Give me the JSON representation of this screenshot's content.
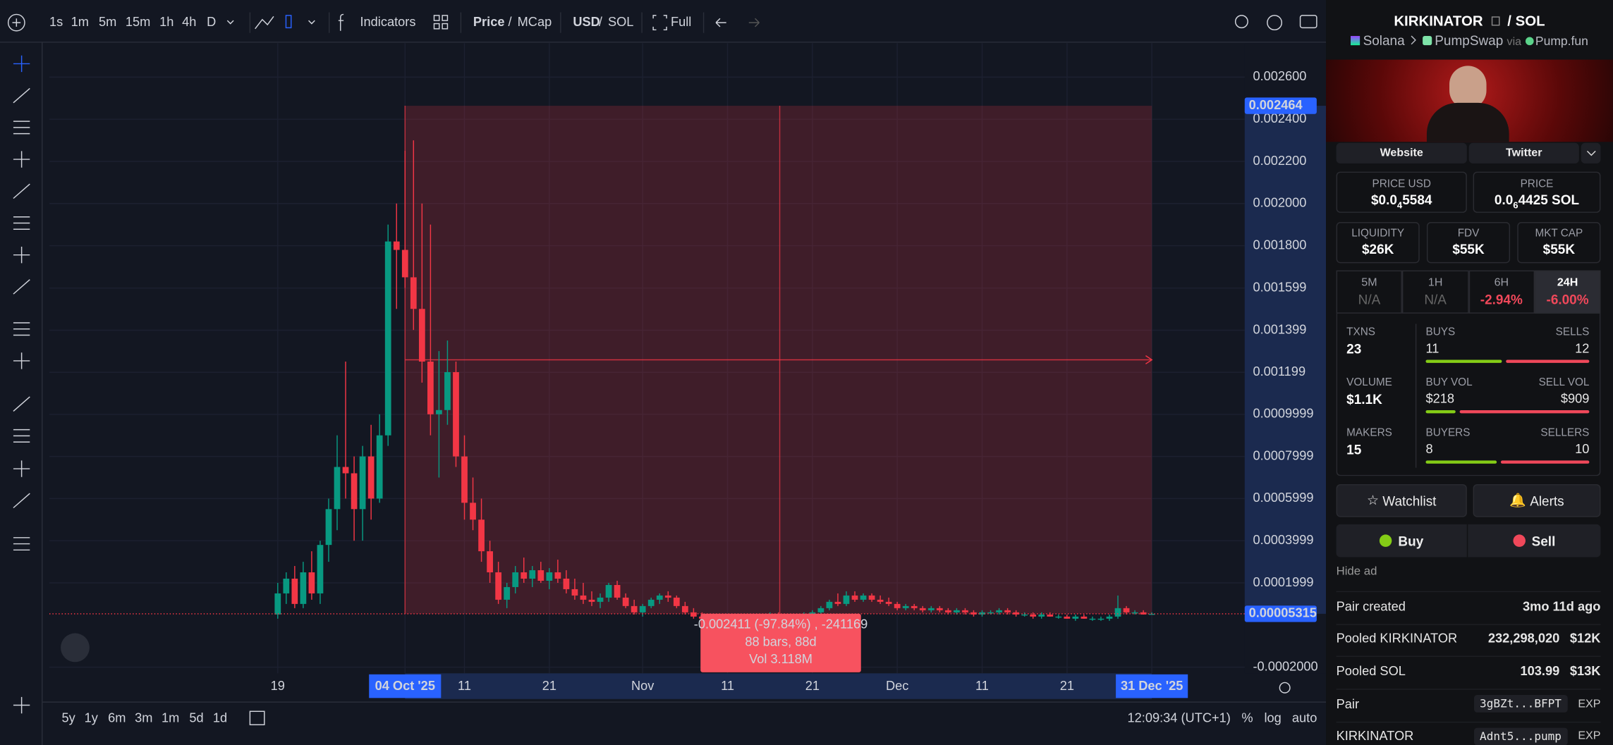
{
  "toolbar": {
    "intervals": [
      "1s",
      "1m",
      "5m",
      "15m",
      "1h",
      "4h",
      "D"
    ],
    "indicators": "Indicators",
    "price": "Price",
    "price_sep": "/",
    "mcap": "MCap",
    "usd": "USD",
    "cur_sep": "/",
    "sol": "SOL",
    "full": "Full"
  },
  "chart": {
    "price_axis": {
      "range": [
        -0.0002,
        0.0026
      ],
      "ticks": [
        {
          "value": 0.0026,
          "label": "0.002600"
        },
        {
          "value": 0.0024,
          "label": "0.002400"
        },
        {
          "value": 0.0022,
          "label": "0.002200"
        },
        {
          "value": 0.002,
          "label": "0.002000"
        },
        {
          "value": 0.0018,
          "label": "0.001800"
        },
        {
          "value": 0.001599,
          "label": "0.001599"
        },
        {
          "value": 0.001399,
          "label": "0.001399"
        },
        {
          "value": 0.001199,
          "label": "0.001199"
        },
        {
          "value": 0.0009999,
          "label": "0.0009999"
        },
        {
          "value": 0.0007999,
          "label": "0.0007999"
        },
        {
          "value": 0.0005999,
          "label": "0.0005999"
        },
        {
          "value": 0.0003999,
          "label": "0.0003999"
        },
        {
          "value": 0.0001999,
          "label": "0.0001999"
        },
        {
          "value": -0.0002,
          "label": "-0.0002000"
        }
      ]
    },
    "time_axis": [
      "19",
      "04 Oct '25",
      "11",
      "21",
      "Nov",
      "11",
      "21",
      "Dec",
      "11",
      "21",
      "31 Dec '25"
    ],
    "range_top": {
      "value": 0.002464,
      "label": "0.002464"
    },
    "last_price": {
      "value": 5.315e-05,
      "label": "0.00005315"
    },
    "measure": [
      "-0.002411 (-97.84%) , -241169",
      "88 bars, 88d",
      "Vol 3.118M"
    ],
    "candles": [
      [
        5e-05,
        0.0002,
        3e-05,
        0.00015
      ],
      [
        0.00015,
        0.00025,
        0.0001,
        0.00022
      ],
      [
        0.00022,
        0.00028,
        8e-05,
        0.0001
      ],
      [
        0.0001,
        0.0003,
        8e-05,
        0.00025
      ],
      [
        0.00025,
        0.00035,
        0.00012,
        0.00015
      ],
      [
        0.00015,
        0.0004,
        0.0001,
        0.00038
      ],
      [
        0.00038,
        0.0006,
        0.0003,
        0.00055
      ],
      [
        0.00055,
        0.0009,
        0.00045,
        0.00075
      ],
      [
        0.00075,
        0.00125,
        0.0006,
        0.00072
      ],
      [
        0.00072,
        0.0008,
        0.0004,
        0.00055
      ],
      [
        0.00055,
        0.00085,
        0.0004,
        0.0008
      ],
      [
        0.0008,
        0.00095,
        0.0005,
        0.0006
      ],
      [
        0.0006,
        0.001,
        0.00058,
        0.0009
      ],
      [
        0.0009,
        0.0019,
        0.00085,
        0.00182
      ],
      [
        0.00182,
        0.002,
        0.0015,
        0.00178
      ],
      [
        0.00178,
        0.00225,
        0.0016,
        0.00165
      ],
      [
        0.00165,
        0.0023,
        0.0014,
        0.0015
      ],
      [
        0.0015,
        0.002,
        0.00115,
        0.00125
      ],
      [
        0.00125,
        0.0019,
        0.0009,
        0.001
      ],
      [
        0.001,
        0.0013,
        0.0007,
        0.00102
      ],
      [
        0.00102,
        0.00135,
        0.00095,
        0.0012
      ],
      [
        0.0012,
        0.00125,
        0.00075,
        0.0008
      ],
      [
        0.0008,
        0.0009,
        0.0005,
        0.00058
      ],
      [
        0.00058,
        0.0007,
        0.00045,
        0.0005
      ],
      [
        0.0005,
        0.0006,
        0.0003,
        0.00035
      ],
      [
        0.00035,
        0.0004,
        0.0002,
        0.00025
      ],
      [
        0.00025,
        0.0003,
        0.0001,
        0.00012
      ],
      [
        0.00012,
        0.0002,
        8e-05,
        0.00018
      ],
      [
        0.00018,
        0.00028,
        0.00015,
        0.00025
      ],
      [
        0.00025,
        0.00032,
        0.0002,
        0.00022
      ],
      [
        0.00022,
        0.00028,
        0.00018,
        0.00026
      ],
      [
        0.00026,
        0.0003,
        0.0002,
        0.00021
      ],
      [
        0.00021,
        0.00027,
        0.00017,
        0.00025
      ],
      [
        0.00025,
        0.00031,
        0.0002,
        0.00022
      ],
      [
        0.00022,
        0.00026,
        0.00015,
        0.00017
      ],
      [
        0.00017,
        0.00022,
        0.00012,
        0.00014
      ],
      [
        0.00014,
        0.0002,
        0.0001,
        0.00012
      ],
      [
        0.00012,
        0.00016,
        9e-05,
        0.00011
      ],
      [
        0.00011,
        0.00015,
        8e-05,
        0.00013
      ],
      [
        0.00013,
        0.0002,
        0.00011,
        0.00019
      ],
      [
        0.00019,
        0.00021,
        0.00012,
        0.00013
      ],
      [
        0.00013,
        0.00015,
        8e-05,
        9e-05
      ],
      [
        9e-05,
        0.00012,
        5e-05,
        6e-05
      ],
      [
        6e-05,
        0.0001,
        4e-05,
        9e-05
      ],
      [
        9e-05,
        0.00013,
        8e-05,
        0.00012
      ],
      [
        0.00012,
        0.00015,
        0.0001,
        0.00014
      ],
      [
        0.00014,
        0.00016,
        0.00011,
        0.00013
      ],
      [
        0.00013,
        0.00014,
        8e-05,
        9e-05
      ],
      [
        9e-05,
        0.00011,
        5e-05,
        6e-05
      ],
      [
        6e-05,
        8e-05,
        3e-05,
        4e-05
      ],
      [
        4e-05,
        6e-05,
        2e-05,
        3e-05
      ],
      [
        3e-05,
        5e-05,
        1e-05,
        2e-05
      ],
      [
        2e-05,
        4e-05,
        1e-05,
        3e-05
      ],
      [
        3e-05,
        5e-05,
        2e-05,
        4e-05
      ],
      [
        4e-05,
        5e-05,
        2e-05,
        3e-05
      ],
      [
        3e-05,
        4e-05,
        1e-05,
        2e-05
      ],
      [
        2e-05,
        4e-05,
        1e-05,
        3e-05
      ],
      [
        3e-05,
        5e-05,
        2e-05,
        4e-05
      ],
      [
        4e-05,
        6e-05,
        3e-05,
        5e-05
      ],
      [
        5e-05,
        6e-05,
        3e-05,
        4e-05
      ],
      [
        4e-05,
        5e-05,
        2e-05,
        3e-05
      ],
      [
        3e-05,
        5e-05,
        2e-05,
        4e-05
      ],
      [
        4e-05,
        6e-05,
        3e-05,
        5e-05
      ],
      [
        5e-05,
        7e-05,
        4e-05,
        6e-05
      ],
      [
        6e-05,
        9e-05,
        5e-05,
        8e-05
      ],
      [
        8e-05,
        0.00012,
        7e-05,
        0.00011
      ],
      [
        0.00011,
        0.00015,
        9e-05,
        0.0001
      ],
      [
        0.0001,
        0.00016,
        9e-05,
        0.00014
      ],
      [
        0.00014,
        0.00016,
        0.00011,
        0.00012
      ],
      [
        0.00012,
        0.00015,
        0.00011,
        0.00014
      ],
      [
        0.00014,
        0.00015,
        0.00011,
        0.00012
      ],
      [
        0.00012,
        0.00014,
        0.0001,
        0.00011
      ],
      [
        0.00011,
        0.00013,
        9e-05,
        0.0001
      ],
      [
        0.0001,
        0.00011,
        7e-05,
        8e-05
      ],
      [
        8e-05,
        0.0001,
        7e-05,
        9e-05
      ],
      [
        9e-05,
        0.0001,
        7e-05,
        8e-05
      ],
      [
        8e-05,
        9e-05,
        6e-05,
        7e-05
      ],
      [
        7e-05,
        9e-05,
        6e-05,
        8e-05
      ],
      [
        8e-05,
        9e-05,
        6e-05,
        7e-05
      ],
      [
        7e-05,
        8e-05,
        5e-05,
        6e-05
      ],
      [
        6e-05,
        8e-05,
        5e-05,
        7e-05
      ],
      [
        7e-05,
        8e-05,
        5e-05,
        6e-05
      ],
      [
        6e-05,
        7e-05,
        4e-05,
        5e-05
      ],
      [
        5e-05,
        7e-05,
        4e-05,
        6e-05
      ],
      [
        6e-05,
        7e-05,
        5e-05,
        6e-05
      ],
      [
        6e-05,
        8e-05,
        5e-05,
        7e-05
      ],
      [
        7e-05,
        8e-05,
        5e-05,
        6e-05
      ],
      [
        6e-05,
        7e-05,
        4e-05,
        5e-05
      ],
      [
        5e-05,
        6e-05,
        4e-05,
        5e-05
      ],
      [
        5e-05,
        6e-05,
        3e-05,
        4e-05
      ],
      [
        4e-05,
        6e-05,
        3e-05,
        5e-05
      ],
      [
        5e-05,
        6e-05,
        4e-05,
        4e-05
      ],
      [
        4e-05,
        5e-05,
        3e-05,
        4e-05
      ],
      [
        4e-05,
        5e-05,
        3e-05,
        3e-05
      ],
      [
        3e-05,
        5e-05,
        2e-05,
        4e-05
      ],
      [
        4e-05,
        5e-05,
        3e-05,
        3e-05
      ],
      [
        3e-05,
        4e-05,
        2e-05,
        3e-05
      ],
      [
        3e-05,
        4e-05,
        2e-05,
        3e-05
      ],
      [
        3e-05,
        5e-05,
        2e-05,
        4e-05
      ],
      [
        4e-05,
        0.00014,
        3e-05,
        8e-05
      ],
      [
        8e-05,
        9e-05,
        5e-05,
        6e-05
      ],
      [
        6e-05,
        7e-05,
        5e-05,
        6e-05
      ],
      [
        6e-05,
        7e-05,
        5e-05,
        5e-05
      ],
      [
        5e-05,
        6e-05,
        5e-05,
        5.315e-05
      ]
    ]
  },
  "bottom": {
    "ranges": [
      "5y",
      "1y",
      "6m",
      "3m",
      "1m",
      "5d",
      "1d"
    ],
    "time": "12:09:34 (UTC+1)",
    "percent": "%",
    "log": "log",
    "auto": "auto"
  },
  "panel": {
    "token": "KIRKINATOR",
    "sep": "/",
    "quote": "SOL",
    "chain": "Solana",
    "dex": "PumpSwap",
    "via": "via",
    "launchpad": "Pump.fun",
    "website": "Website",
    "twitter": "Twitter",
    "price_usd": {
      "label": "PRICE USD",
      "lead": "$0.0",
      "zeros": "4",
      "digits": "5584"
    },
    "price_native": {
      "label": "PRICE",
      "lead": "0.0",
      "zeros": "6",
      "digits": "4425 SOL"
    },
    "liquidity": {
      "label": "LIQUIDITY",
      "value": "$26K"
    },
    "fdv": {
      "label": "FDV",
      "value": "$55K"
    },
    "mcap": {
      "label": "MKT CAP",
      "value": "$55K"
    },
    "tabs": [
      {
        "label": "5M",
        "value": "N/A"
      },
      {
        "label": "1H",
        "value": "N/A"
      },
      {
        "label": "6H",
        "value": "-2.94%"
      },
      {
        "label": "24H",
        "value": "-6.00%"
      }
    ],
    "stats": [
      {
        "label": "TXNS",
        "value": "23",
        "left": {
          "label": "BUYS",
          "value": 11,
          "text": "11"
        },
        "right": {
          "label": "SELLS",
          "value": 12,
          "text": "12"
        }
      },
      {
        "label": "VOLUME",
        "value": "$1.1K",
        "left": {
          "label": "BUY VOL",
          "value": 218,
          "text": "$218"
        },
        "right": {
          "label": "SELL VOL",
          "value": 909,
          "text": "$909"
        }
      },
      {
        "label": "MAKERS",
        "value": "15",
        "left": {
          "label": "BUYERS",
          "value": 8,
          "text": "8"
        },
        "right": {
          "label": "SELLERS",
          "value": 10,
          "text": "10"
        }
      }
    ],
    "watchlist": "Watchlist",
    "alerts": "Alerts",
    "buy": "Buy",
    "sell": "Sell",
    "hide_ad": "Hide ad",
    "rows": [
      {
        "label": "Pair created",
        "value": "3mo 11d ago"
      },
      {
        "label": "Pooled KIRKINATOR",
        "value": "232,298,020",
        "usd": "$12K"
      },
      {
        "label": "Pooled SOL",
        "value": "103.99",
        "usd": "$13K"
      },
      {
        "label": "Pair",
        "addr": "3gBZt...BFPT",
        "exp": "EXP"
      },
      {
        "label": "KIRKINATOR",
        "addr": "Adnt5...pump",
        "exp": "EXP"
      }
    ]
  }
}
